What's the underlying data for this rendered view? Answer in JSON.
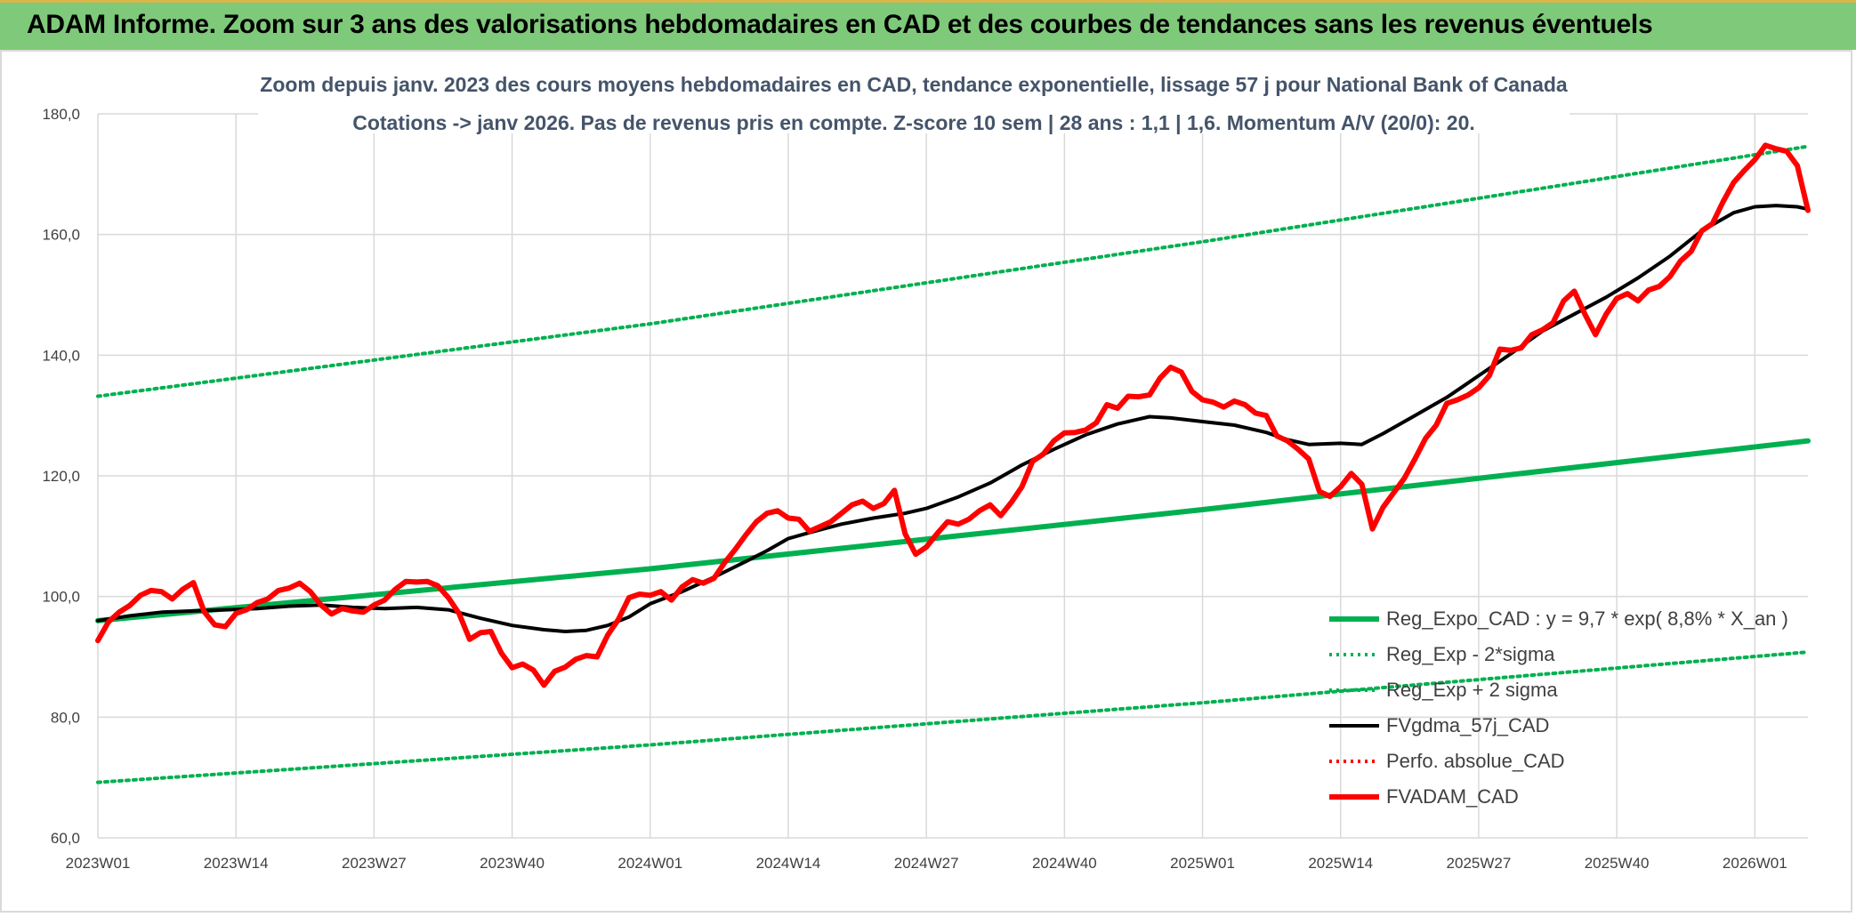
{
  "header": {
    "title": "ADAM Informe. Zoom sur 3 ans des valorisations hebdomadaires en CAD et des courbes de tendances sans les revenus éventuels"
  },
  "colors": {
    "banner": "#7fc97a",
    "regression": "#00b050",
    "fvgdma": "#000000",
    "fvadam": "#ff0000",
    "grid": "#d9d9d9",
    "text": "#404040",
    "subtitle": "#44546a"
  },
  "chart_data": {
    "type": "line",
    "title": "Zoom depuis janv. 2023 des cours moyens hebdomadaires en CAD, tendance exponentielle, lissage 57 j pour National Bank of Canada",
    "subtitle": "Cotations -> janv 2026. Pas de revenus pris en compte. Z-score 10 sem | 28 ans : 1,1 | 1,6. Momentum A/V (20/0): 20.",
    "xlabel": "",
    "ylabel": "",
    "x_range": [
      0,
      161
    ],
    "ylim": [
      60,
      180
    ],
    "y_ticks": [
      60,
      80,
      100,
      120,
      140,
      160,
      180
    ],
    "y_tick_labels": [
      "60,0",
      "80,0",
      "100,0",
      "120,0",
      "140,0",
      "160,0",
      "180,0"
    ],
    "x_ticks": [
      {
        "x": 0,
        "label": "2023W01"
      },
      {
        "x": 13,
        "label": "2023W14"
      },
      {
        "x": 26,
        "label": "2023W27"
      },
      {
        "x": 39,
        "label": "2023W40"
      },
      {
        "x": 52,
        "label": "2024W01"
      },
      {
        "x": 65,
        "label": "2024W14"
      },
      {
        "x": 78,
        "label": "2024W27"
      },
      {
        "x": 91,
        "label": "2024W40"
      },
      {
        "x": 104,
        "label": "2025W01"
      },
      {
        "x": 117,
        "label": "2025W14"
      },
      {
        "x": 130,
        "label": "2025W27"
      },
      {
        "x": 143,
        "label": "2025W40"
      },
      {
        "x": 156,
        "label": "2026W01"
      }
    ],
    "grid": true,
    "legend_position": "bottom-right",
    "series": [
      {
        "name": "Reg_Expo_CAD : y = 9,7 * exp( 8,8% *  X_an )",
        "style": "thick",
        "color": "#00b050",
        "points": [
          [
            0,
            96.0
          ],
          [
            52,
            104.6
          ],
          [
            104,
            114.4
          ],
          [
            161,
            125.8
          ]
        ]
      },
      {
        "name": "Reg_Exp - 2*sigma",
        "style": "dotted",
        "color": "#00b050",
        "points": [
          [
            0,
            133.2
          ],
          [
            52,
            145.2
          ],
          [
            104,
            158.8
          ],
          [
            161,
            174.6
          ]
        ]
      },
      {
        "name": "Reg_Exp + 2 sigma",
        "style": "dotted",
        "color": "#00b050",
        "points": [
          [
            0,
            69.2
          ],
          [
            52,
            75.4
          ],
          [
            104,
            82.4
          ],
          [
            161,
            90.8
          ]
        ]
      },
      {
        "name": "FVgdma_57j_CAD",
        "style": "solid",
        "color": "#000000",
        "points": [
          [
            0,
            96.0
          ],
          [
            3,
            96.8
          ],
          [
            6,
            97.4
          ],
          [
            9,
            97.6
          ],
          [
            12,
            97.8
          ],
          [
            15,
            98.0
          ],
          [
            18,
            98.4
          ],
          [
            21,
            98.6
          ],
          [
            24,
            98.2
          ],
          [
            27,
            98.0
          ],
          [
            30,
            98.2
          ],
          [
            33,
            97.8
          ],
          [
            36,
            96.4
          ],
          [
            39,
            95.2
          ],
          [
            42,
            94.5
          ],
          [
            44,
            94.2
          ],
          [
            46,
            94.4
          ],
          [
            48,
            95.2
          ],
          [
            50,
            96.6
          ],
          [
            52,
            98.8
          ],
          [
            55,
            100.8
          ],
          [
            58,
            103.2
          ],
          [
            61,
            105.8
          ],
          [
            63,
            107.6
          ],
          [
            65,
            109.6
          ],
          [
            67,
            110.6
          ],
          [
            70,
            112.0
          ],
          [
            73,
            113.0
          ],
          [
            76,
            113.8
          ],
          [
            78,
            114.6
          ],
          [
            81,
            116.5
          ],
          [
            84,
            118.8
          ],
          [
            87,
            121.8
          ],
          [
            90,
            124.4
          ],
          [
            93,
            126.8
          ],
          [
            96,
            128.6
          ],
          [
            99,
            129.8
          ],
          [
            101,
            129.6
          ],
          [
            104,
            129.0
          ],
          [
            107,
            128.4
          ],
          [
            110,
            127.2
          ],
          [
            112,
            126.0
          ],
          [
            114,
            125.2
          ],
          [
            117,
            125.4
          ],
          [
            119,
            125.2
          ],
          [
            121,
            127.0
          ],
          [
            124,
            130.0
          ],
          [
            127,
            133.0
          ],
          [
            130,
            136.6
          ],
          [
            133,
            140.2
          ],
          [
            136,
            144.0
          ],
          [
            139,
            146.8
          ],
          [
            142,
            149.6
          ],
          [
            145,
            152.8
          ],
          [
            148,
            156.4
          ],
          [
            151,
            160.6
          ],
          [
            154,
            163.6
          ],
          [
            156,
            164.6
          ],
          [
            158,
            164.8
          ],
          [
            160,
            164.6
          ],
          [
            161,
            164.2
          ]
        ]
      },
      {
        "name": "Perfo. absolue_CAD",
        "style": "dotted",
        "color": "#ff0000",
        "points": []
      },
      {
        "name": "FVADAM_CAD",
        "style": "thick",
        "color": "#ff0000",
        "points": [
          [
            0,
            92.7
          ],
          [
            1,
            95.8
          ],
          [
            2,
            97.4
          ],
          [
            3,
            98.5
          ],
          [
            4,
            100.2
          ],
          [
            5,
            101.0
          ],
          [
            6,
            100.8
          ],
          [
            7,
            99.6
          ],
          [
            8,
            101.2
          ],
          [
            9,
            102.3
          ],
          [
            10,
            97.5
          ],
          [
            11,
            95.3
          ],
          [
            12,
            95.0
          ],
          [
            13,
            97.2
          ],
          [
            14,
            97.8
          ],
          [
            15,
            99.0
          ],
          [
            16,
            99.6
          ],
          [
            17,
            101.0
          ],
          [
            18,
            101.4
          ],
          [
            19,
            102.2
          ],
          [
            20,
            100.8
          ],
          [
            21,
            98.6
          ],
          [
            22,
            97.1
          ],
          [
            23,
            98.0
          ],
          [
            24,
            97.6
          ],
          [
            25,
            97.4
          ],
          [
            26,
            98.6
          ],
          [
            27,
            99.4
          ],
          [
            28,
            101.2
          ],
          [
            29,
            102.5
          ],
          [
            30,
            102.4
          ],
          [
            31,
            102.5
          ],
          [
            32,
            101.8
          ],
          [
            33,
            99.8
          ],
          [
            34,
            97.2
          ],
          [
            35,
            92.9
          ],
          [
            36,
            94.0
          ],
          [
            37,
            94.2
          ],
          [
            38,
            90.6
          ],
          [
            39,
            88.2
          ],
          [
            40,
            88.8
          ],
          [
            41,
            87.8
          ],
          [
            42,
            85.3
          ],
          [
            43,
            87.6
          ],
          [
            44,
            88.3
          ],
          [
            45,
            89.6
          ],
          [
            46,
            90.2
          ],
          [
            47,
            90.0
          ],
          [
            48,
            93.6
          ],
          [
            49,
            96.2
          ],
          [
            50,
            99.8
          ],
          [
            51,
            100.4
          ],
          [
            52,
            100.2
          ],
          [
            53,
            100.8
          ],
          [
            54,
            99.4
          ],
          [
            55,
            101.6
          ],
          [
            56,
            102.8
          ],
          [
            57,
            102.2
          ],
          [
            58,
            103.0
          ],
          [
            59,
            105.6
          ],
          [
            60,
            107.8
          ],
          [
            61,
            110.2
          ],
          [
            62,
            112.4
          ],
          [
            63,
            113.8
          ],
          [
            64,
            114.2
          ],
          [
            65,
            113.0
          ],
          [
            66,
            112.8
          ],
          [
            67,
            110.8
          ],
          [
            68,
            111.6
          ],
          [
            69,
            112.4
          ],
          [
            70,
            113.8
          ],
          [
            71,
            115.2
          ],
          [
            72,
            115.8
          ],
          [
            73,
            114.6
          ],
          [
            74,
            115.4
          ],
          [
            75,
            117.6
          ],
          [
            76,
            110.4
          ],
          [
            77,
            107.0
          ],
          [
            78,
            108.2
          ],
          [
            79,
            110.4
          ],
          [
            80,
            112.4
          ],
          [
            81,
            112.0
          ],
          [
            82,
            112.8
          ],
          [
            83,
            114.2
          ],
          [
            84,
            115.2
          ],
          [
            85,
            113.4
          ],
          [
            86,
            115.6
          ],
          [
            87,
            118.2
          ],
          [
            88,
            122.4
          ],
          [
            89,
            123.6
          ],
          [
            90,
            125.8
          ],
          [
            91,
            127.1
          ],
          [
            92,
            127.2
          ],
          [
            93,
            127.6
          ],
          [
            94,
            128.8
          ],
          [
            95,
            131.8
          ],
          [
            96,
            131.2
          ],
          [
            97,
            133.2
          ],
          [
            98,
            133.1
          ],
          [
            99,
            133.4
          ],
          [
            100,
            136.2
          ],
          [
            101,
            138.0
          ],
          [
            102,
            137.2
          ],
          [
            103,
            134.0
          ],
          [
            104,
            132.6
          ],
          [
            105,
            132.2
          ],
          [
            106,
            131.4
          ],
          [
            107,
            132.4
          ],
          [
            108,
            131.8
          ],
          [
            109,
            130.4
          ],
          [
            110,
            130.0
          ],
          [
            111,
            126.6
          ],
          [
            112,
            125.8
          ],
          [
            113,
            124.4
          ],
          [
            114,
            122.8
          ],
          [
            115,
            117.4
          ],
          [
            116,
            116.6
          ],
          [
            117,
            118.2
          ],
          [
            118,
            120.4
          ],
          [
            119,
            118.6
          ],
          [
            120,
            111.2
          ],
          [
            121,
            114.8
          ],
          [
            122,
            117.2
          ],
          [
            123,
            119.6
          ],
          [
            124,
            122.8
          ],
          [
            125,
            126.2
          ],
          [
            126,
            128.4
          ],
          [
            127,
            132.0
          ],
          [
            128,
            132.6
          ],
          [
            129,
            133.4
          ],
          [
            130,
            134.6
          ],
          [
            131,
            136.6
          ],
          [
            132,
            141.0
          ],
          [
            133,
            140.8
          ],
          [
            134,
            141.2
          ],
          [
            135,
            143.4
          ],
          [
            136,
            144.2
          ],
          [
            137,
            145.4
          ],
          [
            138,
            149.0
          ],
          [
            139,
            150.6
          ],
          [
            140,
            146.8
          ],
          [
            141,
            143.4
          ],
          [
            142,
            146.8
          ],
          [
            143,
            149.4
          ],
          [
            144,
            150.2
          ],
          [
            145,
            149.0
          ],
          [
            146,
            150.8
          ],
          [
            147,
            151.4
          ],
          [
            148,
            153.0
          ],
          [
            149,
            155.6
          ],
          [
            150,
            157.2
          ],
          [
            151,
            160.6
          ],
          [
            152,
            161.8
          ],
          [
            153,
            165.4
          ],
          [
            154,
            168.6
          ],
          [
            155,
            170.6
          ],
          [
            156,
            172.4
          ],
          [
            157,
            174.8
          ],
          [
            158,
            174.2
          ],
          [
            159,
            173.8
          ],
          [
            160,
            171.4
          ],
          [
            161,
            164.0
          ]
        ]
      }
    ]
  }
}
